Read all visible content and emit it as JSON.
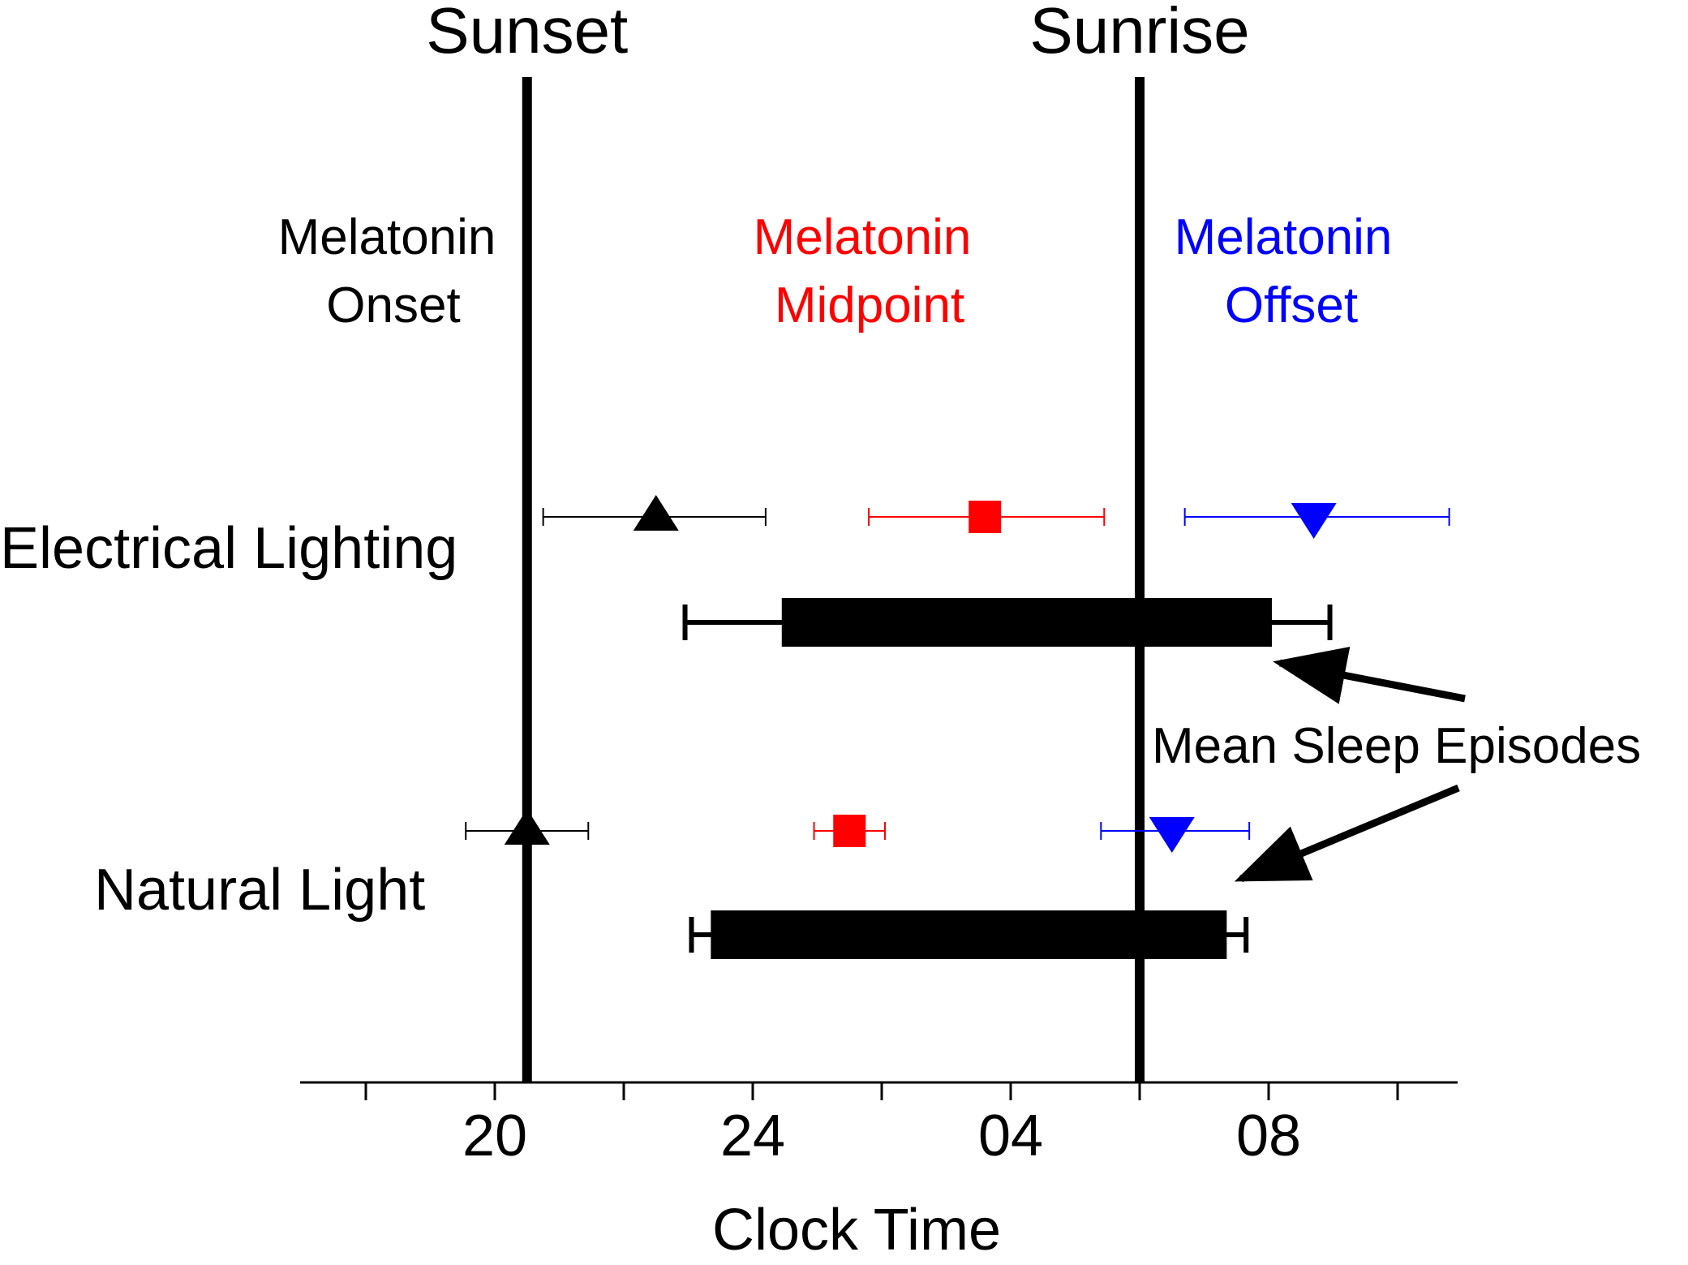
{
  "chart_data": {
    "type": "scatter",
    "title": "",
    "xlabel": "Clock Time",
    "ylabel": "",
    "x_unit": "hours (clock time; values past 24 are next-day hours, e.g. 28 = 04:00)",
    "xlim": [
      16.0,
      34.0
    ],
    "x_ticks": [
      18,
      20,
      22,
      24,
      26,
      28,
      30,
      32,
      34
    ],
    "x_tick_labels": [
      {
        "value": 20,
        "label": "20"
      },
      {
        "value": 24,
        "label": "24"
      },
      {
        "value": 28,
        "label": "04"
      },
      {
        "value": 32,
        "label": "08"
      }
    ],
    "reference_lines": [
      {
        "label": "Sunset",
        "x": 20.5
      },
      {
        "label": "Sunrise",
        "x": 30.0
      }
    ],
    "series_headers": [
      {
        "line1": "Melatonin",
        "line2": "Onset",
        "color": "#000000"
      },
      {
        "line1": "Melatonin",
        "line2": "Midpoint",
        "color": "#ff0000"
      },
      {
        "line1": "Melatonin",
        "line2": "Offset",
        "color": "#0000ff"
      }
    ],
    "conditions": [
      {
        "label": "Electrical Lighting",
        "onset": {
          "mean": 22.5,
          "lo": 20.75,
          "hi": 24.2
        },
        "midpoint": {
          "mean": 27.6,
          "lo": 25.8,
          "hi": 29.45
        },
        "offset": {
          "mean": 32.7,
          "lo": 30.7,
          "hi": 34.8
        },
        "sleep": {
          "start": 24.45,
          "end": 32.05,
          "err_lo": 22.95,
          "err_hi": 32.95
        }
      },
      {
        "label": "Natural Light",
        "onset": {
          "mean": 20.5,
          "lo": 19.55,
          "hi": 21.45
        },
        "midpoint": {
          "mean": 25.5,
          "lo": 24.95,
          "hi": 26.05
        },
        "offset": {
          "mean": 30.5,
          "lo": 29.4,
          "hi": 31.7
        },
        "sleep": {
          "start": 23.35,
          "end": 31.35,
          "err_lo": 23.05,
          "err_hi": 31.65
        }
      }
    ],
    "annotation": "Mean Sleep Episodes"
  }
}
